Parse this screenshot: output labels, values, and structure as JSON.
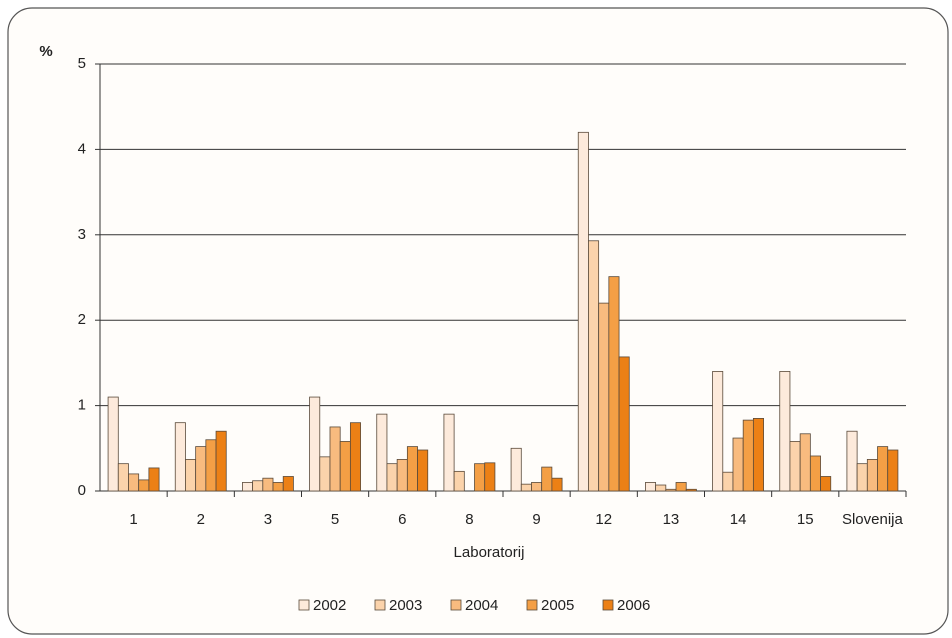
{
  "chart_data": {
    "type": "bar",
    "y_label": "%",
    "x_label": "Laboratorij",
    "categories": [
      "1",
      "2",
      "3",
      "5",
      "6",
      "8",
      "9",
      "12",
      "13",
      "14",
      "15",
      "Slovenija"
    ],
    "series": [
      {
        "name": "2002",
        "color": "#fdeadb",
        "values": [
          1.1,
          0.8,
          0.1,
          1.1,
          0.9,
          0.9,
          0.5,
          4.2,
          0.1,
          1.4,
          1.4,
          0.7
        ]
      },
      {
        "name": "2003",
        "color": "#fbd3ab",
        "values": [
          0.32,
          0.37,
          0.12,
          0.4,
          0.32,
          0.23,
          0.08,
          2.93,
          0.07,
          0.22,
          0.58,
          0.32
        ]
      },
      {
        "name": "2004",
        "color": "#f8bb7f",
        "values": [
          0.2,
          0.52,
          0.15,
          0.75,
          0.37,
          0,
          0.1,
          2.2,
          0.02,
          0.62,
          0.67,
          0.37
        ]
      },
      {
        "name": "2005",
        "color": "#f49f45",
        "values": [
          0.13,
          0.6,
          0.1,
          0.58,
          0.52,
          0.32,
          0.28,
          2.51,
          0.1,
          0.83,
          0.41,
          0.52
        ]
      },
      {
        "name": "2006",
        "color": "#ec8015",
        "values": [
          0.27,
          0.7,
          0.17,
          0.8,
          0.48,
          0.33,
          0.15,
          1.57,
          0.02,
          0.85,
          0.17,
          0.48
        ]
      }
    ],
    "ylim": [
      0,
      5
    ],
    "yticks": [
      0,
      1,
      2,
      3,
      4,
      5
    ],
    "grid": true
  }
}
